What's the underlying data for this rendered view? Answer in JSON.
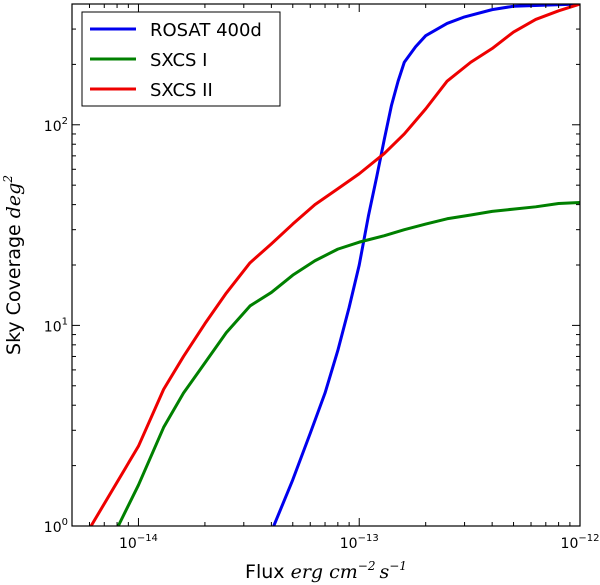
{
  "chart_data": {
    "type": "line",
    "xscale": "log",
    "yscale": "log",
    "xlim": [
      5e-15,
      1e-12
    ],
    "ylim": [
      1,
      400
    ],
    "xlabel": {
      "text": "Flux",
      "math": "erg cm",
      "exp1": "−2",
      "math2": "s",
      "exp2": "−1"
    },
    "ylabel": {
      "text": "Sky Coverage",
      "math": "deg",
      "exp": "2"
    },
    "x_ticks": [
      {
        "value": 1e-14,
        "base": "10",
        "exp": "−14"
      },
      {
        "value": 1e-13,
        "base": "10",
        "exp": "−13"
      },
      {
        "value": 1e-12,
        "base": "10",
        "exp": "−12"
      }
    ],
    "y_ticks": [
      {
        "value": 1,
        "base": "10",
        "exp": "0"
      },
      {
        "value": 10,
        "base": "10",
        "exp": "1"
      },
      {
        "value": 100,
        "base": "10",
        "exp": "2"
      }
    ],
    "legend_position": "top-left",
    "grid": false,
    "series": [
      {
        "name": "ROSAT 400d",
        "color": "#0000ee",
        "x": [
          4.1e-14,
          5e-14,
          6e-14,
          7e-14,
          8e-14,
          9e-14,
          1e-13,
          1.1e-13,
          1.2e-13,
          1.3e-13,
          1.4e-13,
          1.5e-13,
          1.6e-13,
          1.8e-13,
          2e-13,
          2.5e-13,
          3e-13,
          4e-13,
          5e-13,
          7e-13,
          1e-12
        ],
        "y": [
          1.0,
          1.7,
          2.9,
          4.6,
          7.5,
          12.3,
          20,
          35,
          55,
          85,
          125,
          165,
          205,
          245,
          278,
          320,
          345,
          375,
          390,
          395,
          400
        ]
      },
      {
        "name": "SXCS I",
        "color": "#008000",
        "x": [
          8.1e-15,
          1e-14,
          1.3e-14,
          1.6e-14,
          2e-14,
          2.5e-14,
          3.2e-14,
          4e-14,
          5e-14,
          6.3e-14,
          8e-14,
          1e-13,
          1.3e-13,
          1.6e-13,
          2e-13,
          2.5e-13,
          3.2e-13,
          4e-13,
          5e-13,
          6.3e-13,
          8e-13,
          1e-12
        ],
        "y": [
          1.0,
          1.6,
          3.1,
          4.6,
          6.5,
          9.2,
          12.5,
          14.6,
          17.8,
          21.0,
          24.0,
          26.0,
          28.0,
          30.0,
          32.0,
          34.0,
          35.5,
          37.0,
          38.0,
          39.0,
          40.5,
          41.0
        ]
      },
      {
        "name": "SXCS II",
        "color": "#ee0000",
        "x": [
          6.1e-15,
          1e-14,
          1.3e-14,
          1.6e-14,
          2e-14,
          2.5e-14,
          3.2e-14,
          4e-14,
          5e-14,
          6.3e-14,
          8e-14,
          1e-13,
          1.3e-13,
          1.6e-13,
          2e-13,
          2.5e-13,
          3.2e-13,
          4e-13,
          5e-13,
          6.3e-13,
          8e-13,
          1e-12
        ],
        "y": [
          1.0,
          2.5,
          4.8,
          7.0,
          10.2,
          14.5,
          20.5,
          25.5,
          32.0,
          40.0,
          48.0,
          57.0,
          72.0,
          90.0,
          120.0,
          165.0,
          205.0,
          240.0,
          290.0,
          335.0,
          370.0,
          400.0
        ]
      }
    ]
  }
}
